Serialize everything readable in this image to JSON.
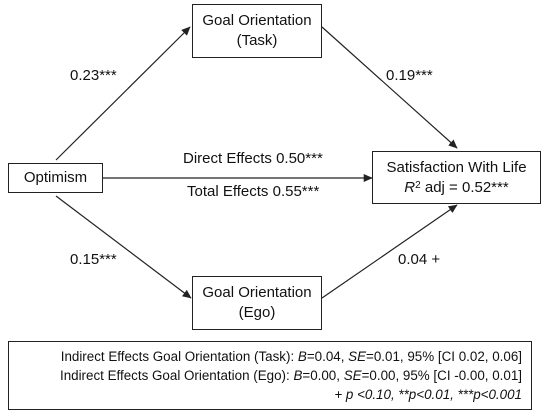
{
  "nodes": {
    "optimism": "Optimism",
    "goal_task_line1": "Goal Orientation",
    "goal_task_line2": "(Task)",
    "goal_ego_line1": "Goal Orientation",
    "goal_ego_line2": "(Ego)",
    "swl_line1": "Satisfaction With Life",
    "swl_r2_symbol": "R",
    "swl_r2_sup": "2",
    "swl_r2_rest": " adj = 0.52***"
  },
  "paths": {
    "optimism_to_task": "0.23***",
    "task_to_swl": "0.19***",
    "optimism_to_ego": "0.15***",
    "ego_to_swl": "0.04 +",
    "direct_effects": "Direct Effects 0.50***",
    "total_effects": "Total Effects 0.55***"
  },
  "notes": {
    "task_prefix": "Indirect Effects Goal Orientation (Task): ",
    "task_b_label": "B",
    "task_b_value": "=0.04, ",
    "task_se_label": "SE",
    "task_se_value": "=0.01, 95% [CI 0.02, 0.06]",
    "ego_prefix": "Indirect Effects Goal Orientation (Ego): ",
    "ego_b_label": "B",
    "ego_b_value": "=0.00, ",
    "ego_se_label": "SE",
    "ego_se_value": "=0.00, 95% [CI -0.00, 0.01]",
    "significance": "+ p <0.10, **p<0.01, ***p<0.001"
  },
  "colors": {
    "stroke": "#222222",
    "text": "#111111",
    "background": "#ffffff"
  }
}
